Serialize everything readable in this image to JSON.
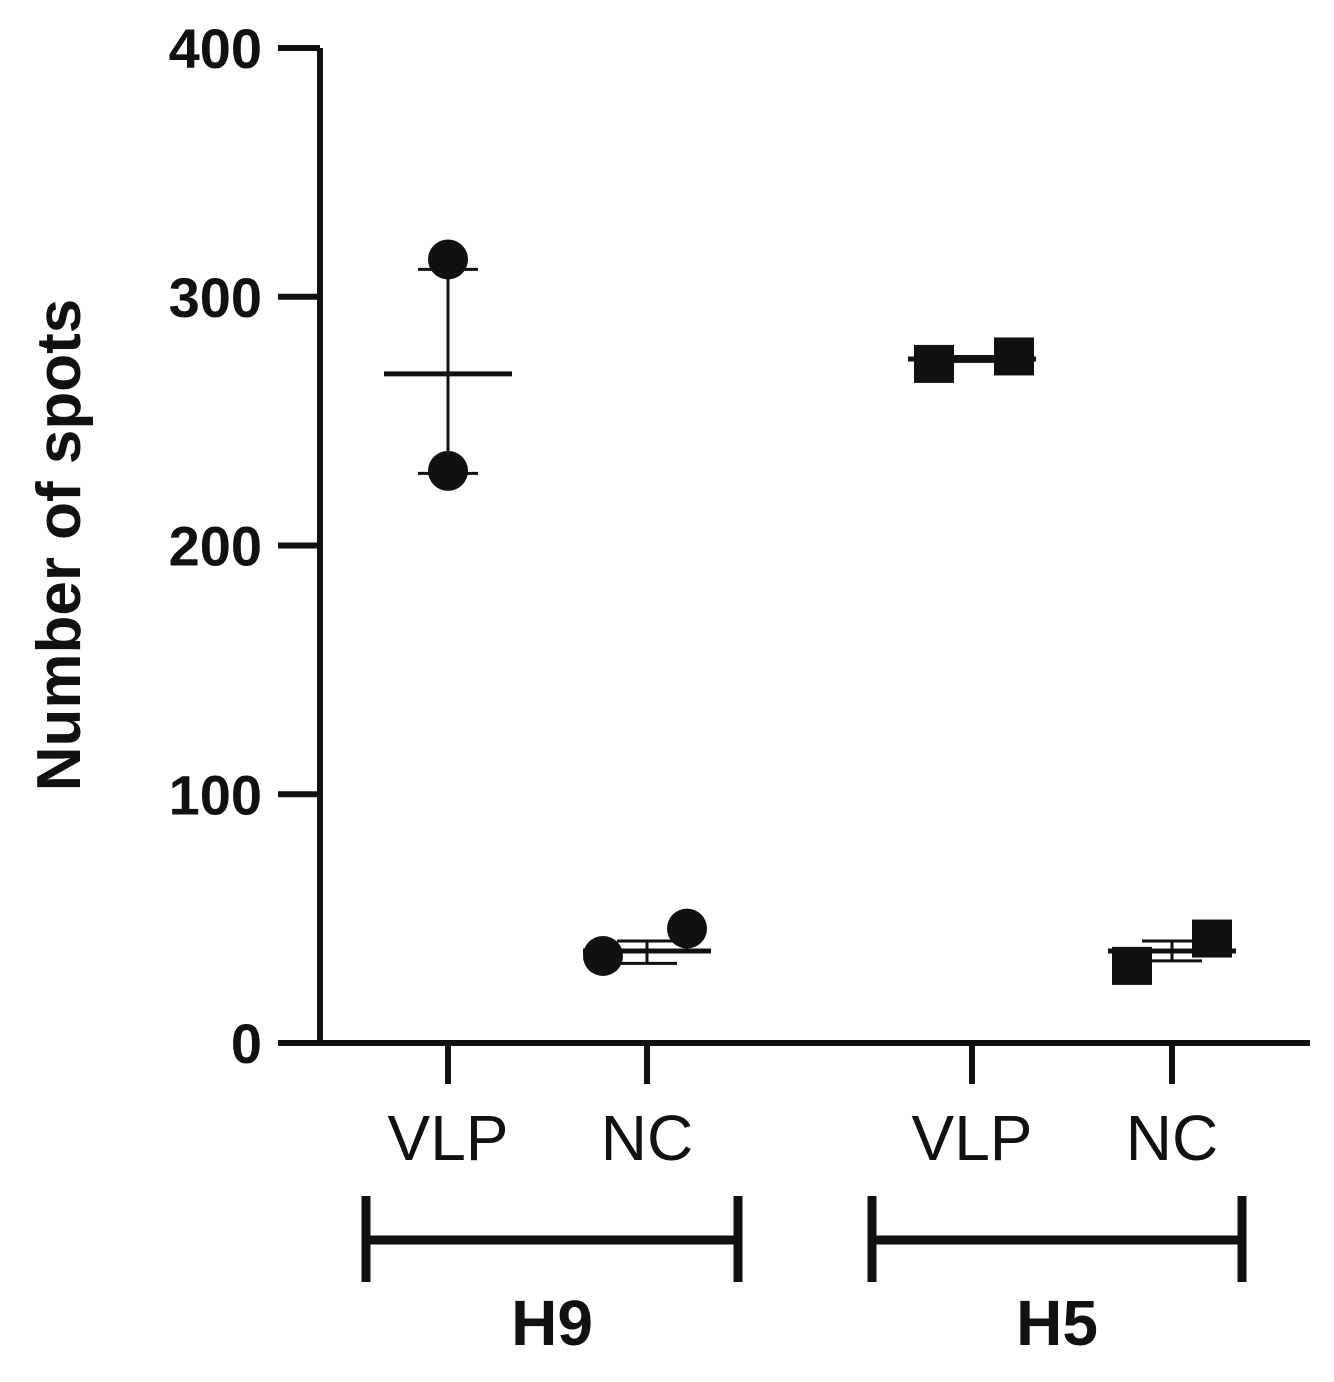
{
  "chart_data": {
    "type": "scatter",
    "ylabel": "Number of spots",
    "ylim": [
      0,
      400
    ],
    "yticks": [
      0,
      100,
      200,
      300,
      400
    ],
    "grid": false,
    "categories": [
      "VLP",
      "NC",
      "VLP",
      "NC"
    ],
    "groups": [
      {
        "name": "H9",
        "categories": [
          "VLP",
          "NC"
        ],
        "marker": "circle"
      },
      {
        "name": "H5",
        "categories": [
          "VLP",
          "NC"
        ],
        "marker": "square"
      }
    ],
    "points": [
      {
        "group": "H9",
        "category": "VLP",
        "values": [
          315,
          230
        ],
        "mean": 269,
        "sd_range": [
          229,
          311
        ]
      },
      {
        "group": "H9",
        "category": "NC",
        "values": [
          35,
          46
        ],
        "mean": 37,
        "sd_range": [
          32,
          41
        ]
      },
      {
        "group": "H5",
        "category": "VLP",
        "values": [
          273,
          276
        ],
        "mean": 275,
        "sd_range": [
          274,
          276
        ]
      },
      {
        "group": "H5",
        "category": "NC",
        "values": [
          31,
          42
        ],
        "mean": 37,
        "sd_range": [
          33,
          41
        ]
      }
    ],
    "colors": {
      "ink": "#111111"
    }
  }
}
